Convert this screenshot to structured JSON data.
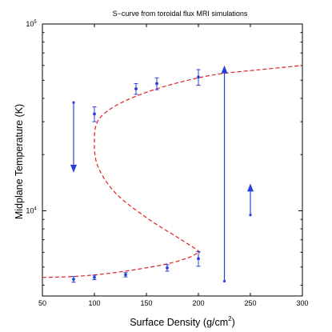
{
  "chart_data": {
    "type": "scatter",
    "title": "S−curve from toroidal flux MRI simulations",
    "xlabel": "Surface Density (g/cm",
    "xlabel_sup": "2",
    "xlabel_tail": ")",
    "ylabel": "Midplane Temperature (K)",
    "xlim": [
      50,
      300
    ],
    "ylim": [
      3500,
      100000
    ],
    "yscale": "log",
    "xticks": [
      50,
      100,
      150,
      200,
      250,
      300
    ],
    "yticks_major": [
      {
        "value": 10000,
        "base": "10",
        "exp": "4"
      },
      {
        "value": 100000,
        "base": "10",
        "exp": "5"
      }
    ],
    "colors": {
      "curve": "#e02020",
      "points": "#2a3fd8",
      "axes": "#000000"
    },
    "curve": {
      "style": "dashed",
      "color": "#e02020",
      "x": [
        50,
        80,
        110,
        140,
        170,
        190,
        198,
        200,
        180,
        150,
        120,
        103,
        100,
        103,
        115,
        135,
        160,
        190,
        220,
        260,
        300
      ],
      "y": [
        4400,
        4450,
        4600,
        4850,
        5200,
        5600,
        5900,
        6100,
        7200,
        9200,
        12500,
        17500,
        24000,
        30000,
        35000,
        40000,
        45000,
        50000,
        54000,
        57000,
        60000
      ]
    },
    "points": [
      {
        "x": 80,
        "y": 4300,
        "err": 150
      },
      {
        "x": 100,
        "y": 4400,
        "err": 120
      },
      {
        "x": 130,
        "y": 4550,
        "err": 120
      },
      {
        "x": 170,
        "y": 4950,
        "err": 200
      },
      {
        "x": 200,
        "y": 5550,
        "err": 500
      },
      {
        "x": 100,
        "y": 33000,
        "err": 3000
      },
      {
        "x": 140,
        "y": 45000,
        "err": 3000
      },
      {
        "x": 160,
        "y": 48000,
        "err": 3500
      },
      {
        "x": 200,
        "y": 52000,
        "err": 5000
      }
    ],
    "arrows": [
      {
        "x": 80,
        "y_start": 38000,
        "y_end": 16000
      },
      {
        "x": 225,
        "y_start": 4200,
        "y_end": 60000
      },
      {
        "x": 250,
        "y_start": 9500,
        "y_end": 14000
      }
    ]
  }
}
